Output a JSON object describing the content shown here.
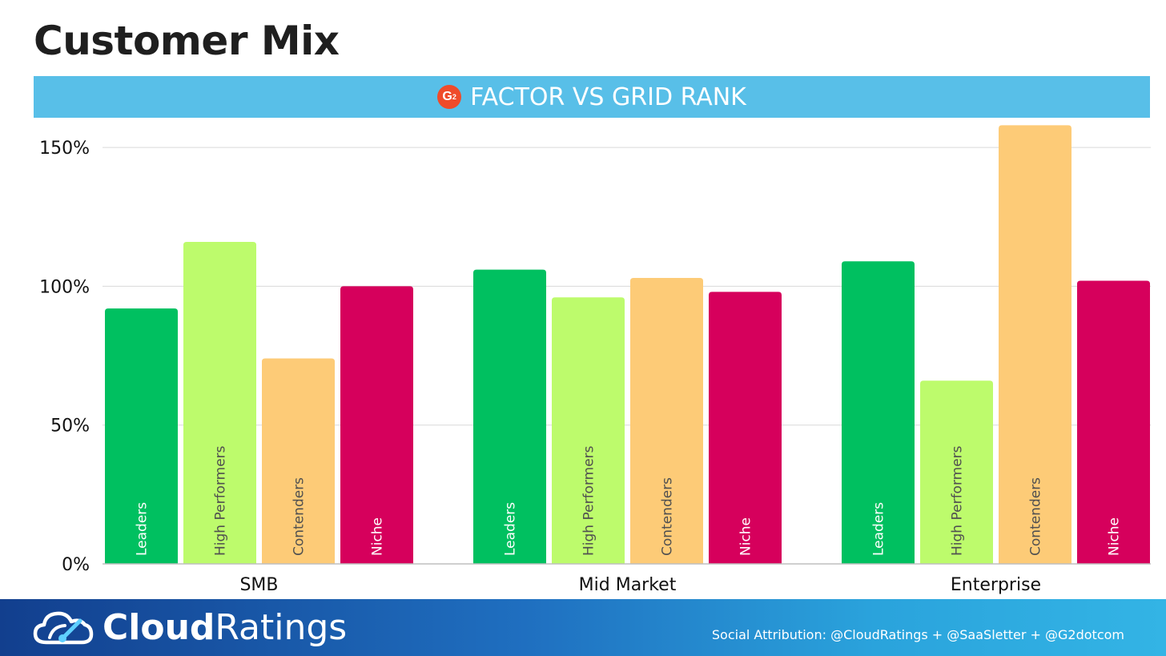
{
  "page": {
    "title": "Customer Mix"
  },
  "banner": {
    "badge": "G",
    "badge_sup": "2",
    "title": "FACTOR VS GRID RANK"
  },
  "footer": {
    "brand_bold": "Cloud",
    "brand_light": "Ratings",
    "attribution": "Social Attribution: @CloudRatings + @SaaSletter + @G2dotcom"
  },
  "chart_data": {
    "type": "bar",
    "categories": [
      "SMB",
      "Mid Market",
      "Enterprise"
    ],
    "series": [
      {
        "name": "Leaders",
        "color": "#00c060",
        "label_color": "#ffffff",
        "values": [
          92,
          106,
          109
        ]
      },
      {
        "name": "High Performers",
        "color": "#bdfb6c",
        "label_color": "#505050",
        "values": [
          116,
          96,
          66
        ]
      },
      {
        "name": "Contenders",
        "color": "#fdcb77",
        "label_color": "#505050",
        "values": [
          74,
          103,
          158
        ]
      },
      {
        "name": "Niche",
        "color": "#d6005c",
        "label_color": "#ffffff",
        "values": [
          100,
          98,
          102
        ]
      }
    ],
    "y_ticks": [
      0,
      50,
      100,
      150
    ],
    "y_tick_labels": [
      "0%",
      "50%",
      "100%",
      "150%"
    ],
    "ylim": [
      0,
      160
    ],
    "grid": true,
    "legend": "none (series names printed inside bars)"
  }
}
